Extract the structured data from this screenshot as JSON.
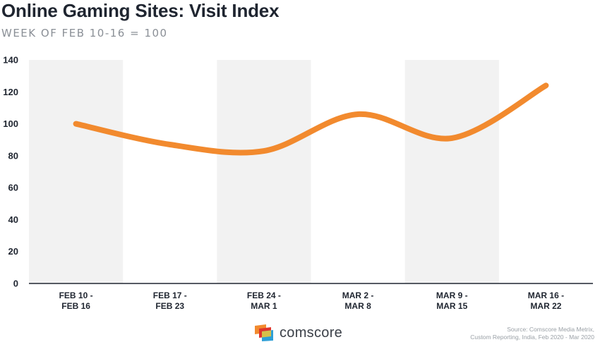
{
  "title": "Online Gaming Sites: Visit Index",
  "subtitle": "WEEK OF FEB 10-16 = 100",
  "colors": {
    "line": "#f28a2e",
    "band": "#f2f2f2",
    "axis": "#1f2530"
  },
  "chart_data": {
    "type": "line",
    "title": "Online Gaming Sites: Visit Index",
    "subtitle": "WEEK OF FEB 10-16 = 100",
    "categories": [
      [
        "FEB 10 -",
        "FEB 16"
      ],
      [
        "FEB 17 -",
        "FEB 23"
      ],
      [
        "FEB 24 -",
        "MAR 1"
      ],
      [
        "MAR 2 -",
        "MAR 8"
      ],
      [
        "MAR 9 -",
        "MAR 15"
      ],
      [
        "MAR 16 -",
        "MAR 22"
      ]
    ],
    "series": [
      {
        "values": [
          100,
          87,
          83,
          106,
          91,
          124
        ]
      }
    ],
    "ylim": [
      0,
      140
    ],
    "yticks": [
      0,
      20,
      40,
      60,
      80,
      100,
      120,
      140
    ],
    "grid": false,
    "alternating_bands": true,
    "line_style": "smooth"
  },
  "logo": {
    "name": "comscore-logo-icon",
    "text": "comscore"
  },
  "source": {
    "line1": "Source: Comscore Media Metrix,",
    "line2": "Custom Reporting, India, Feb 2020 - Mar 2020"
  }
}
